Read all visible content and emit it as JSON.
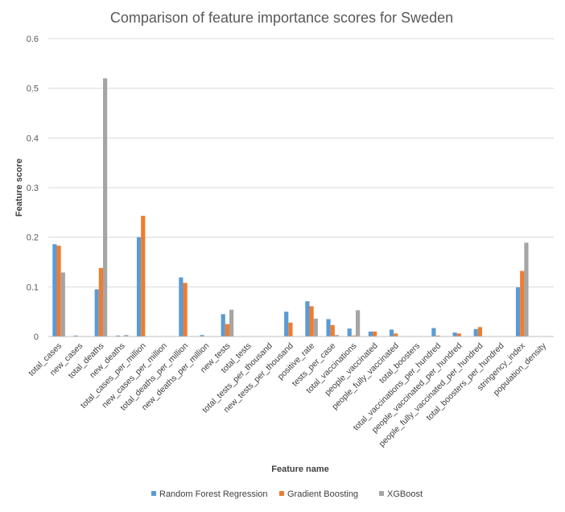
{
  "chart_data": {
    "type": "bar",
    "title": "Comparison of feature importance scores for Sweden",
    "xlabel": "Feature name",
    "ylabel": "Feature score",
    "ylim": [
      0,
      0.6
    ],
    "yticks": [
      "0",
      "0.1",
      "0.2",
      "0.3",
      "0.4",
      "0.5",
      "0.6"
    ],
    "grid": true,
    "legend_position": "bottom",
    "categories": [
      "total_cases",
      "new_cases",
      "total_deaths",
      "new_deaths",
      "total_cases_per_million",
      "new_cases_per_million",
      "total_deaths_per_million",
      "new_deaths_per_million",
      "new_tests",
      "total_tests",
      "total_tests_per_thousand",
      "new_tests_per_thousand",
      "positive_rate",
      "tests_per_case",
      "total_vaccinations",
      "people_vaccinated",
      "people_fully_vaccinated",
      "total_boosters",
      "total_vaccinations_per_hundred",
      "people_vaccinated_per_hundred",
      "people_fully_vaccinated_per_hundred",
      "total_boosters_per_hundred",
      "stringency_index",
      "population_density"
    ],
    "series": [
      {
        "name": "Random Forest Regression",
        "color": "#5b9bd5",
        "values": [
          0.186,
          0.002,
          0.095,
          0.002,
          0.2,
          0,
          0.119,
          0.003,
          0.045,
          0,
          0,
          0.05,
          0.071,
          0.035,
          0.016,
          0.01,
          0.014,
          0,
          0.017,
          0.008,
          0.015,
          0,
          0.099,
          0
        ]
      },
      {
        "name": "Gradient Boosting",
        "color": "#ed7d31",
        "values": [
          0.183,
          0,
          0.138,
          0,
          0.243,
          0,
          0.108,
          0,
          0.025,
          0,
          0,
          0.028,
          0.061,
          0.023,
          0.002,
          0.01,
          0.006,
          0,
          0.002,
          0.006,
          0.019,
          0,
          0.132,
          0
        ]
      },
      {
        "name": "XGBoost",
        "color": "#a5a5a5",
        "values": [
          0.129,
          0,
          0.52,
          0.003,
          0,
          0,
          0,
          0,
          0.054,
          0,
          0,
          0,
          0.036,
          0.003,
          0.053,
          0,
          0,
          0,
          0,
          0,
          0,
          0,
          0.189,
          0
        ]
      }
    ]
  }
}
